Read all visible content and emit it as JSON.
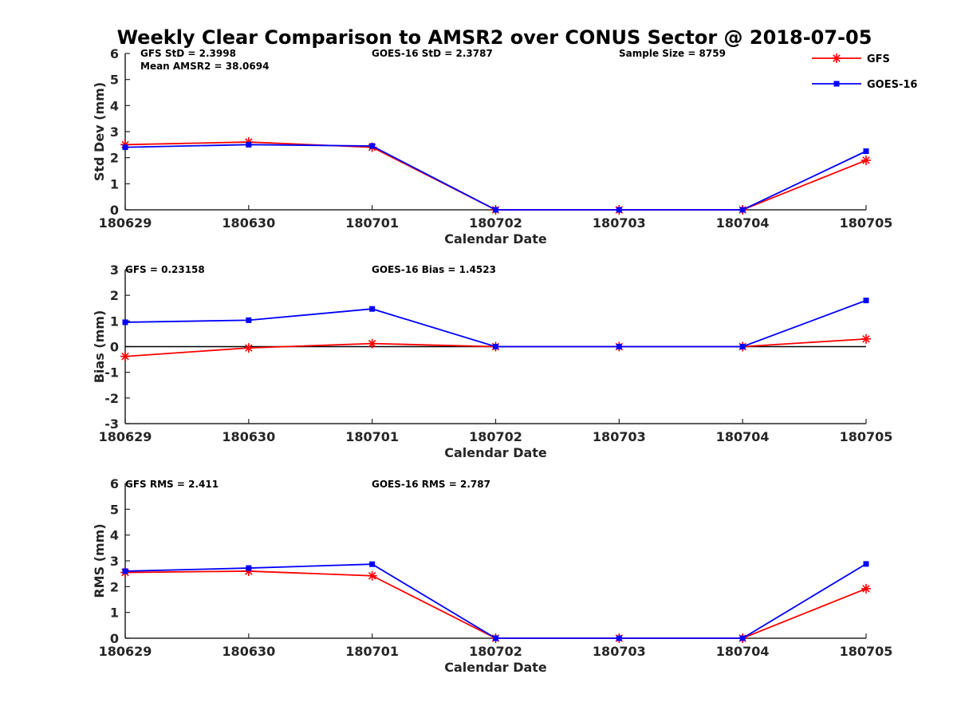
{
  "title": "Weekly Clear Comparison to AMSR2 over CONUS Sector @ 2018-07-05",
  "legend": [
    {
      "name": "GFS",
      "color": "#ff0000",
      "marker": "asterisk"
    },
    {
      "name": "GOES-16",
      "color": "#0000ff",
      "marker": "square"
    }
  ],
  "chart_data": [
    {
      "type": "line",
      "categories": [
        "180629",
        "180630",
        "180701",
        "180702",
        "180703",
        "180704",
        "180705"
      ],
      "xlabel": "Calendar Date",
      "ylabel": "Std Dev (mm)",
      "ylim": [
        0,
        6
      ],
      "yticks": [
        "0",
        "1",
        "2",
        "3",
        "4",
        "5",
        "6"
      ],
      "zero_line": false,
      "annotations": [
        "GFS StD = 2.3998",
        "Mean AMSR2 = 38.0694",
        "GOES-16 StD = 2.3787",
        "Sample Size = 8759"
      ],
      "series": [
        {
          "name": "GFS",
          "values": [
            2.5,
            2.6,
            2.4,
            0,
            0,
            0,
            1.9
          ]
        },
        {
          "name": "GOES-16",
          "values": [
            2.4,
            2.5,
            2.45,
            0,
            0,
            0,
            2.25
          ]
        }
      ]
    },
    {
      "type": "line",
      "categories": [
        "180629",
        "180630",
        "180701",
        "180702",
        "180703",
        "180704",
        "180705"
      ],
      "xlabel": "Calendar Date",
      "ylabel": "Bias (mm)",
      "ylim": [
        -3,
        3
      ],
      "yticks": [
        "-3",
        "-2",
        "-1",
        "0",
        "1",
        "2",
        "3"
      ],
      "zero_line": true,
      "annotations": [
        "GFS = 0.23158",
        "GOES-16 Bias  = 1.4523"
      ],
      "series": [
        {
          "name": "GFS",
          "values": [
            -0.38,
            -0.05,
            0.12,
            0,
            0,
            0,
            0.3
          ]
        },
        {
          "name": "GOES-16",
          "values": [
            0.95,
            1.03,
            1.47,
            0,
            0,
            0,
            1.8
          ]
        }
      ]
    },
    {
      "type": "line",
      "categories": [
        "180629",
        "180630",
        "180701",
        "180702",
        "180703",
        "180704",
        "180705"
      ],
      "xlabel": "Calendar Date",
      "ylabel": "RMS (mm)",
      "ylim": [
        0,
        6
      ],
      "yticks": [
        "0",
        "1",
        "2",
        "3",
        "4",
        "5",
        "6"
      ],
      "zero_line": false,
      "annotations": [
        "GFS RMS = 2.411",
        "GOES-16 RMS = 2.787"
      ],
      "series": [
        {
          "name": "GFS",
          "values": [
            2.55,
            2.6,
            2.42,
            0,
            0,
            0,
            1.92
          ]
        },
        {
          "name": "GOES-16",
          "values": [
            2.6,
            2.72,
            2.87,
            0,
            0,
            0,
            2.88
          ]
        }
      ]
    }
  ]
}
